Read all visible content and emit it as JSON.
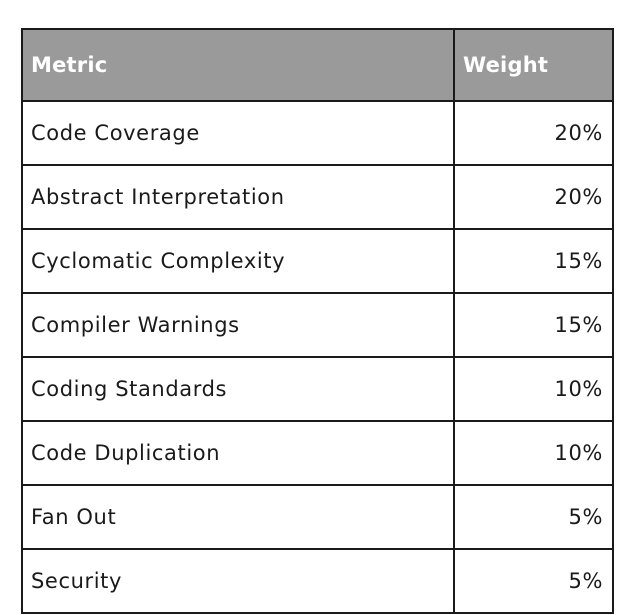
{
  "table": {
    "headers": {
      "metric": "Metric",
      "weight": "Weight"
    },
    "rows": [
      {
        "metric": "Code Coverage",
        "weight": "20%"
      },
      {
        "metric": "Abstract Interpretation",
        "weight": "20%"
      },
      {
        "metric": "Cyclomatic Complexity",
        "weight": "15%"
      },
      {
        "metric": "Compiler Warnings",
        "weight": "15%"
      },
      {
        "metric": "Coding Standards",
        "weight": "10%"
      },
      {
        "metric": "Code Duplication",
        "weight": "10%"
      },
      {
        "metric": "Fan Out",
        "weight": "5%"
      },
      {
        "metric": "Security",
        "weight": "5%"
      }
    ]
  },
  "colors": {
    "header_background": "#9a9a9a",
    "header_text": "#ffffff",
    "border": "#1a1a1a",
    "body_text": "#1a1a1a"
  }
}
